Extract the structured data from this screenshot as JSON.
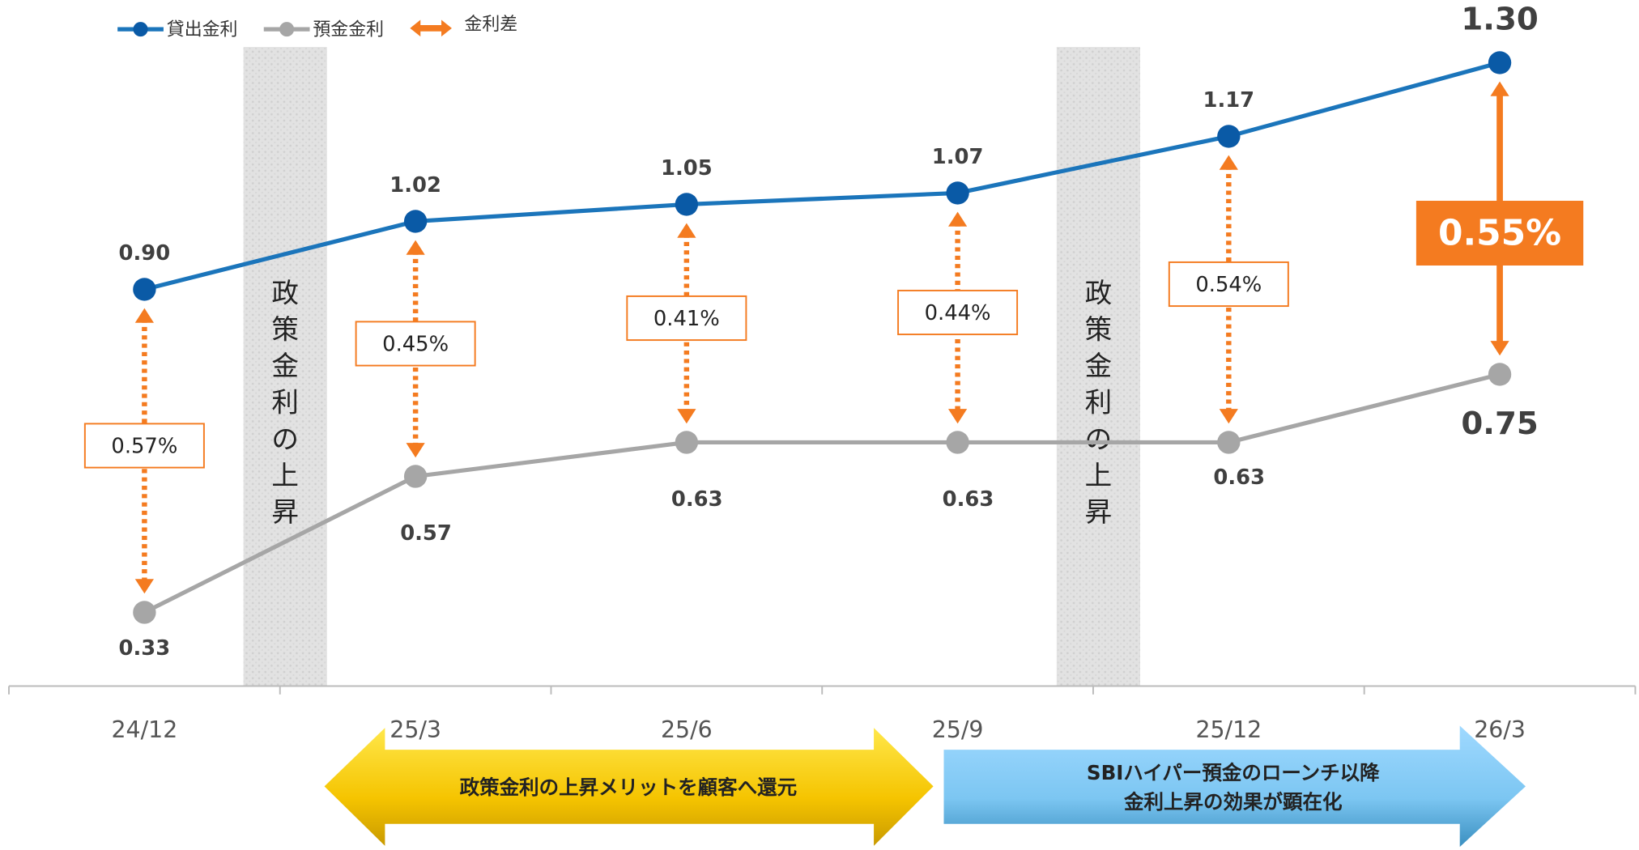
{
  "chart_data": {
    "type": "line",
    "categories": [
      "24/12",
      "25/3",
      "25/6",
      "25/9",
      "25/12",
      "26/3"
    ],
    "series": [
      {
        "name": "貸出金利",
        "color": "#1b75bb",
        "marker_color": "#0a5aa6",
        "values": [
          0.9,
          1.02,
          1.05,
          1.07,
          1.17,
          1.3
        ],
        "value_labels": [
          "0.90",
          "1.02",
          "1.05",
          "1.07",
          "1.17",
          "1.30"
        ]
      },
      {
        "name": "預金金利",
        "color": "#a6a6a6",
        "marker_color": "#a6a6a6",
        "values": [
          0.33,
          0.57,
          0.63,
          0.63,
          0.63,
          0.75
        ],
        "value_labels": [
          "0.33",
          "0.57",
          "0.63",
          "0.63",
          "0.63",
          "0.75"
        ]
      }
    ],
    "spread": {
      "name": "金利差",
      "color": "#f47b20",
      "values": [
        0.57,
        0.45,
        0.41,
        0.44,
        0.54,
        0.55
      ],
      "value_labels": [
        "0.57%",
        "0.45%",
        "0.41%",
        "0.44%",
        "0.54%",
        "0.55%"
      ]
    },
    "ylim": [
      0.2,
      1.4
    ],
    "annotations": [
      "政策金利の上昇",
      "政策金利の上昇"
    ],
    "banners": [
      [
        "政策金利の上昇メリットを顧客へ還元"
      ],
      [
        "SBIハイパー預金のローンチ以降",
        "金利上昇の効果が顕在化"
      ]
    ]
  }
}
